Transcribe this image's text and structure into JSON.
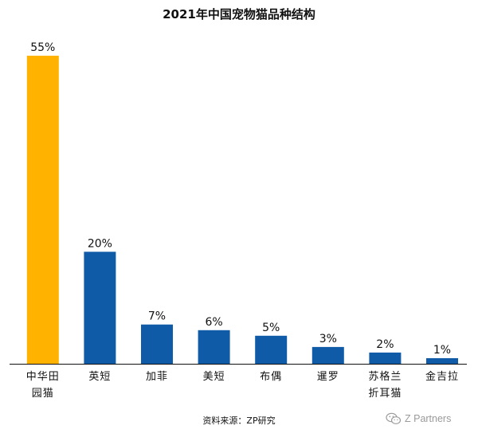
{
  "title": "2021年中国宠物猫品种结构",
  "source": "资料来源：ZP研究",
  "watermark": {
    "icon": "wechat-icon",
    "text": "Z Partners"
  },
  "colors": {
    "highlight": "#FFB300",
    "bar": "#0F5BA8",
    "axis": "#111111"
  },
  "chart_data": {
    "type": "bar",
    "title": "2021年中国宠物猫品种结构",
    "xlabel": "",
    "ylabel": "",
    "ylim": [
      0,
      55
    ],
    "grid": false,
    "categories": [
      "中华田\n园猫",
      "英短",
      "加菲",
      "美短",
      "布偶",
      "暹罗",
      "苏格兰\n折耳猫",
      "金吉拉"
    ],
    "values": [
      55,
      20,
      7,
      6,
      5,
      3,
      2,
      1
    ],
    "value_labels": [
      "55%",
      "20%",
      "7%",
      "6%",
      "5%",
      "3%",
      "2%",
      "1%"
    ],
    "highlight_index": 0
  }
}
